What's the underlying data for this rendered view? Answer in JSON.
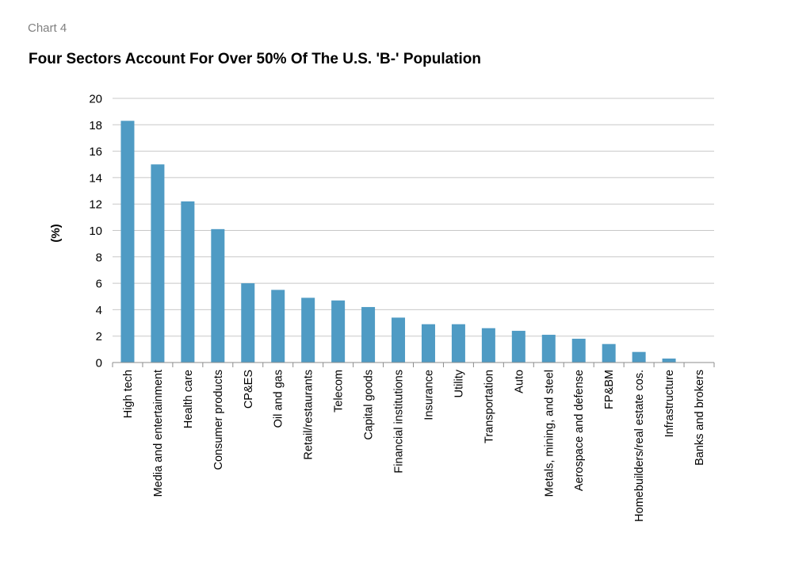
{
  "header": {
    "chart_number": "Chart 4"
  },
  "chart_data": {
    "type": "bar",
    "title": "Four Sectors Account For Over 50% Of The U.S. 'B-' Population",
    "xlabel": "",
    "ylabel": "(%)",
    "ylim": [
      0,
      20
    ],
    "yticks": [
      0,
      2,
      4,
      6,
      8,
      10,
      12,
      14,
      16,
      18,
      20
    ],
    "grid": true,
    "legend": "none",
    "bar_color": "#4f9bc4",
    "categories": [
      "High tech",
      "Media and entertainment",
      "Health care",
      "Consumer products",
      "CP&ES",
      "Oil and gas",
      "Retail/restaurants",
      "Telecom",
      "Capital goods",
      "Financial institutions",
      "Insurance",
      "Utility",
      "Transportation",
      "Auto",
      "Metals, mining, and steel",
      "Aerospace and defense",
      "FP&BM",
      "Homebuilders/real estate cos.",
      "Infrastructure",
      "Banks and brokers"
    ],
    "values": [
      18.3,
      15.0,
      12.2,
      10.1,
      6.0,
      5.5,
      4.9,
      4.7,
      4.2,
      3.4,
      2.9,
      2.9,
      2.6,
      2.4,
      2.1,
      1.8,
      1.4,
      0.8,
      0.3,
      0.0
    ]
  }
}
